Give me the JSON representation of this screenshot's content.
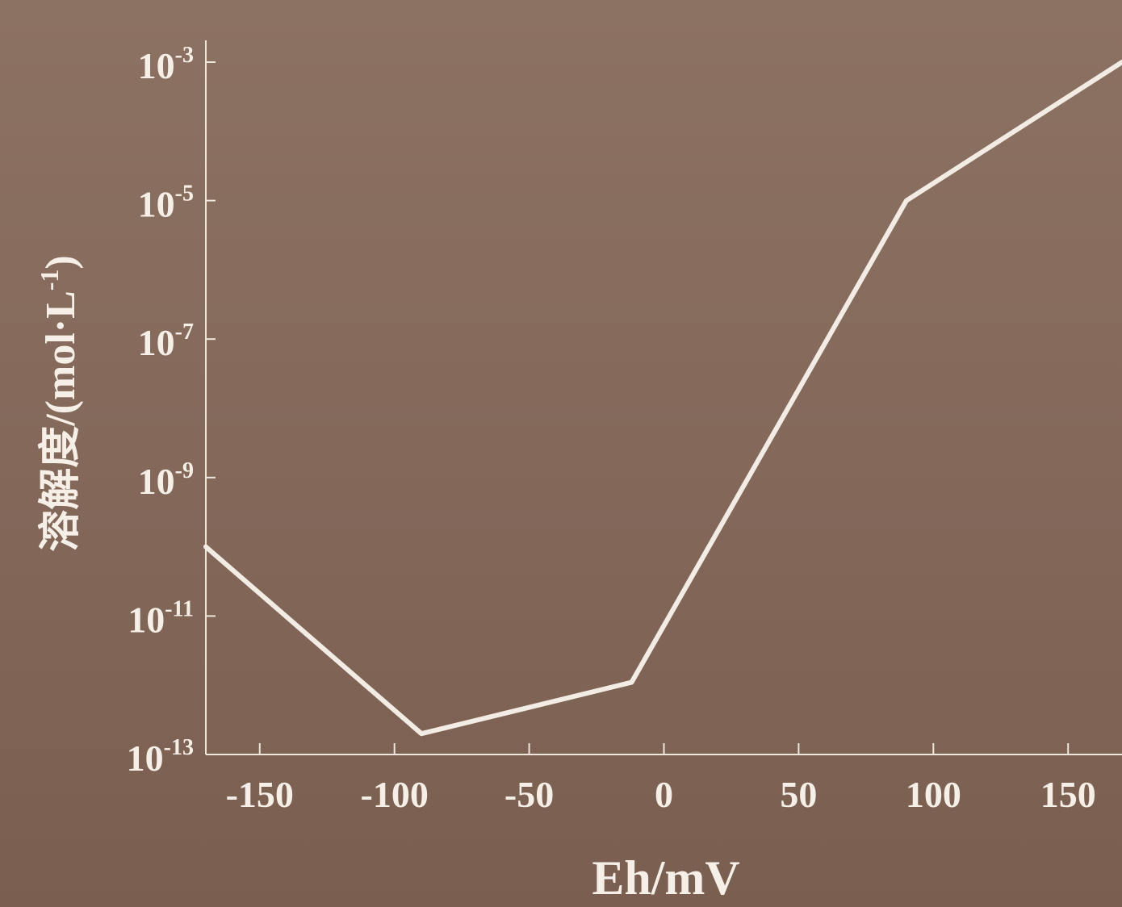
{
  "chart_data": {
    "type": "line",
    "title": "",
    "xlabel": "Eh/mV",
    "ylabel": "溶解度/(mol·L",
    "ylabel_sup": "-1",
    "ylabel_close": ")",
    "xlim": [
      -170,
      170
    ],
    "ylim_exponent": [
      -13,
      -3
    ],
    "y_scale": "log",
    "grid": false,
    "line_color": "#f3ece4",
    "x_ticks": [
      -150,
      -100,
      -50,
      0,
      50,
      100,
      150
    ],
    "x_tick_labels": [
      "-150",
      "-100",
      "-50",
      "0",
      "50",
      "100",
      "150"
    ],
    "y_ticks": [
      -13,
      -11,
      -9,
      -7,
      -5,
      -3
    ],
    "y_tick_labels": [
      {
        "base": "10",
        "exp": "-13"
      },
      {
        "base": "10",
        "exp": "-11"
      },
      {
        "base": "10",
        "exp": "-9"
      },
      {
        "base": "10",
        "exp": "-7"
      },
      {
        "base": "10",
        "exp": "-5"
      },
      {
        "base": "10",
        "exp": "-3"
      }
    ],
    "series": [
      {
        "x": [
          -170,
          -90,
          -12,
          90,
          170
        ],
        "y": [
          1e-10,
          2e-13,
          1.1e-12,
          1e-05,
          0.001
        ]
      }
    ]
  }
}
